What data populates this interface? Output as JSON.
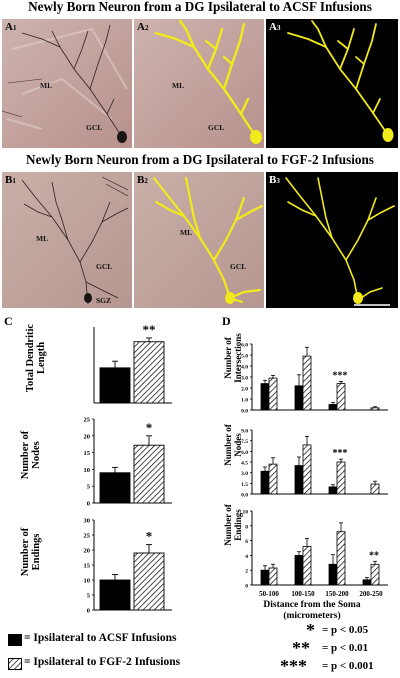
{
  "titles": {
    "row_a": "Newly Born Neuron from a DG Ipsilateral to ACSF Infusions",
    "row_b": "Newly Born Neuron from a DG Ipsilateral to FGF-2 Infusions"
  },
  "panels": {
    "a1": {
      "letter": "A",
      "sub": "1"
    },
    "a2": {
      "letter": "A",
      "sub": "2"
    },
    "a3": {
      "letter": "A",
      "sub": "3"
    },
    "b1": {
      "letter": "B",
      "sub": "1"
    },
    "b2": {
      "letter": "B",
      "sub": "2"
    },
    "b3": {
      "letter": "B",
      "sub": "3"
    },
    "ml": "ML",
    "gcl": "GCL",
    "sgz": "SGZ"
  },
  "figure_letters": {
    "c": "C",
    "d": "D"
  },
  "colors": {
    "tracing": "#f2ea1a",
    "tissue": "#c9aaa6",
    "tissue_dark": "#a98583",
    "acsf_bar": "#000000",
    "fgf2_bar": "#ffffff"
  },
  "chart_data": [
    {
      "type": "bar",
      "id": "c-length",
      "ylabel": "Total Dendritic Length",
      "categories": [
        "ACSF",
        "FGF-2"
      ],
      "values": [
        370,
        645
      ],
      "errors": [
        70,
        40
      ],
      "ylim": [
        0,
        800
      ],
      "significance": "**",
      "tick_labels": []
    },
    {
      "type": "bar",
      "id": "c-nodes",
      "ylabel": "Number of Nodes",
      "categories": [
        "ACSF",
        "FGF-2"
      ],
      "values": [
        9,
        17.2
      ],
      "errors": [
        1.6,
        2.8
      ],
      "ylim": [
        0,
        25
      ],
      "ticks": [
        0,
        5,
        10,
        15,
        20,
        25
      ],
      "tick_labels": [
        "0",
        "5",
        "10",
        "15",
        "20",
        "25"
      ],
      "significance": "*"
    },
    {
      "type": "bar",
      "id": "c-endings",
      "ylabel": "Number of Endings",
      "categories": [
        "ACSF",
        "FGF-2"
      ],
      "values": [
        10,
        19
      ],
      "errors": [
        1.8,
        2.8
      ],
      "ylim": [
        0,
        30
      ],
      "ticks": [
        0,
        5,
        10,
        15,
        20,
        25,
        30
      ],
      "tick_labels": [
        "0",
        "5",
        "10",
        "15",
        "20",
        "25",
        "30"
      ],
      "significance": "*"
    },
    {
      "type": "bar",
      "id": "d-intersections",
      "ylabel": "Number of Intersections",
      "categories": [
        "50-100",
        "100-150",
        "150-200",
        "200-250"
      ],
      "series": [
        {
          "name": "Ipsilateral to ACSF Infusions",
          "values": [
            2.4,
            2.2,
            0.5,
            0
          ],
          "errors": [
            0.3,
            1.0,
            0.2,
            0
          ]
        },
        {
          "name": "Ipsilateral to FGF-2 Infusions",
          "values": [
            2.9,
            4.9,
            2.4,
            0.2
          ],
          "errors": [
            0.25,
            0.8,
            0.2,
            0.1
          ]
        }
      ],
      "ylim": [
        0,
        6
      ],
      "ticks": [
        0,
        1,
        2,
        3,
        4,
        5,
        6
      ],
      "tick_labels": [
        "0.0",
        "1.0",
        "2.0",
        "3.0",
        "4.0",
        "5.0",
        "6.0"
      ],
      "significance": [
        {
          "category": "150-200",
          "label": "***"
        }
      ]
    },
    {
      "type": "bar",
      "id": "d-nodes",
      "ylabel": "Number of Nodes",
      "categories": [
        "50-100",
        "100-150",
        "150-200",
        "200-250"
      ],
      "series": [
        {
          "name": "Ipsilateral to ACSF Infusions",
          "values": [
            3.2,
            4.0,
            1.0,
            0
          ],
          "errors": [
            0.6,
            1.2,
            0.3,
            0
          ]
        },
        {
          "name": "Ipsilateral to FGF-2 Infusions",
          "values": [
            4.2,
            6.9,
            4.5,
            1.4
          ],
          "errors": [
            0.9,
            1.2,
            0.4,
            0.4
          ]
        }
      ],
      "ylim": [
        0,
        9
      ],
      "ticks": [
        0,
        1.5,
        3,
        4.5,
        6,
        7.5,
        9
      ],
      "tick_labels": [
        "0.0",
        "1.5",
        "3.0",
        "4.5",
        "6.0",
        "7.5",
        "9.0"
      ],
      "significance": [
        {
          "category": "150-200",
          "label": "***"
        }
      ]
    },
    {
      "type": "bar",
      "id": "d-endings",
      "ylabel": "Number of Endings",
      "categories": [
        "50-100",
        "100-150",
        "150-200",
        "200-250"
      ],
      "series": [
        {
          "name": "Ipsilateral to ACSF Infusions",
          "values": [
            2.0,
            4.0,
            2.8,
            0.7
          ],
          "errors": [
            0.6,
            0.5,
            1.3,
            0.3
          ]
        },
        {
          "name": "Ipsilateral to FGF-2 Infusions",
          "values": [
            2.3,
            5.2,
            7.2,
            2.8
          ],
          "errors": [
            0.5,
            1.1,
            1.2,
            0.4
          ]
        }
      ],
      "ylim": [
        0,
        10
      ],
      "ticks": [
        0,
        2,
        4,
        6,
        8,
        10
      ],
      "tick_labels": [
        "0",
        "2",
        "4",
        "6",
        "8",
        "10"
      ],
      "significance": [
        {
          "category": "200-250",
          "label": "**"
        }
      ],
      "xlabel": "Distance from the Soma",
      "xlabel_unit": "(micrometers)"
    }
  ],
  "legend": {
    "acsf": "= Ipsilateral to ACSF Infusions",
    "fgf2": "= Ipsilateral to FGF-2 Infusions"
  },
  "significance_key": [
    {
      "stars": "*",
      "text": "= p < 0.05"
    },
    {
      "stars": "**",
      "text": "= p < 0.01"
    },
    {
      "stars": "***",
      "text": "= p < 0.001"
    }
  ]
}
